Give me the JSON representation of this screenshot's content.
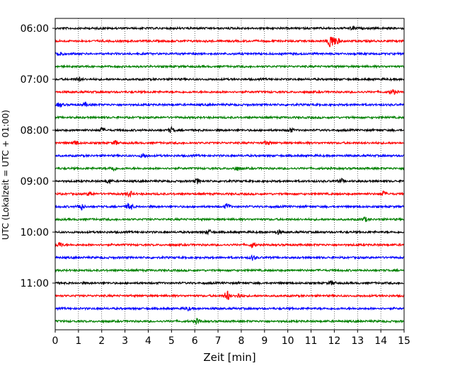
{
  "chart_data": {
    "type": "line",
    "title": "",
    "xlabel": "Zeit  [min]",
    "ylabel": "UTC (Lokalzeit = UTC + 01:00)",
    "xlim": [
      0,
      15
    ],
    "x_ticks": [
      "0",
      "1",
      "2",
      "3",
      "4",
      "5",
      "6",
      "7",
      "8",
      "9",
      "10",
      "11",
      "12",
      "13",
      "14",
      "15"
    ],
    "y_ticks": [
      "06:00",
      "07:00",
      "08:00",
      "09:00",
      "10:00",
      "11:00"
    ],
    "vertical_grid": true,
    "grid_style": "dotted",
    "trace_interval_minutes": 15,
    "trace_colors": [
      "#000000",
      "#ff0000",
      "#0000ff",
      "#008000"
    ],
    "series": [
      {
        "start": "06:00",
        "events": [
          {
            "x": 12.8,
            "amp": 0.25
          }
        ]
      },
      {
        "start": "06:15",
        "events": [
          {
            "x": 11.85,
            "amp": 1.2
          },
          {
            "x": 12.1,
            "amp": 0.5
          }
        ]
      },
      {
        "start": "06:30",
        "events": [
          {
            "x": 0.2,
            "amp": 0.4
          }
        ]
      },
      {
        "start": "06:45",
        "events": []
      },
      {
        "start": "07:00",
        "events": [
          {
            "x": 1.0,
            "amp": 0.25
          }
        ]
      },
      {
        "start": "07:15",
        "events": [
          {
            "x": 14.5,
            "amp": 0.35
          }
        ]
      },
      {
        "start": "07:30",
        "events": [
          {
            "x": 0.2,
            "amp": 0.3
          },
          {
            "x": 1.3,
            "amp": 0.25
          }
        ]
      },
      {
        "start": "07:45",
        "events": []
      },
      {
        "start": "08:00",
        "events": [
          {
            "x": 2.0,
            "amp": 0.3
          },
          {
            "x": 5.0,
            "amp": 0.4
          },
          {
            "x": 10.1,
            "amp": 0.3
          }
        ]
      },
      {
        "start": "08:15",
        "events": [
          {
            "x": 0.9,
            "amp": 0.3
          },
          {
            "x": 2.6,
            "amp": 0.3
          },
          {
            "x": 9.1,
            "amp": 0.3
          }
        ]
      },
      {
        "start": "08:30",
        "events": [
          {
            "x": 3.8,
            "amp": 0.35
          }
        ]
      },
      {
        "start": "08:45",
        "events": [
          {
            "x": 2.5,
            "amp": 0.35
          },
          {
            "x": 7.8,
            "amp": 0.3
          }
        ]
      },
      {
        "start": "09:00",
        "events": [
          {
            "x": 2.3,
            "amp": 0.35
          },
          {
            "x": 6.1,
            "amp": 0.35
          },
          {
            "x": 12.3,
            "amp": 0.3
          }
        ]
      },
      {
        "start": "09:15",
        "events": [
          {
            "x": 1.5,
            "amp": 0.3
          },
          {
            "x": 3.2,
            "amp": 0.4
          },
          {
            "x": 14.1,
            "amp": 0.35
          }
        ]
      },
      {
        "start": "09:30",
        "events": [
          {
            "x": 1.1,
            "amp": 0.5
          },
          {
            "x": 3.2,
            "amp": 0.6
          },
          {
            "x": 7.4,
            "amp": 0.4
          }
        ]
      },
      {
        "start": "09:45",
        "events": [
          {
            "x": 13.3,
            "amp": 0.3
          }
        ]
      },
      {
        "start": "10:00",
        "events": [
          {
            "x": 6.6,
            "amp": 0.3
          },
          {
            "x": 9.6,
            "amp": 0.3
          }
        ]
      },
      {
        "start": "10:15",
        "events": [
          {
            "x": 0.2,
            "amp": 0.35
          },
          {
            "x": 8.5,
            "amp": 0.35
          }
        ]
      },
      {
        "start": "10:30",
        "events": [
          {
            "x": 8.5,
            "amp": 0.35
          }
        ]
      },
      {
        "start": "10:45",
        "events": []
      },
      {
        "start": "11:00",
        "events": [
          {
            "x": 11.9,
            "amp": 0.3
          }
        ]
      },
      {
        "start": "11:15",
        "events": [
          {
            "x": 7.4,
            "amp": 0.75
          },
          {
            "x": 7.9,
            "amp": 0.4
          }
        ]
      },
      {
        "start": "11:30",
        "events": [
          {
            "x": 5.7,
            "amp": 0.25
          }
        ]
      },
      {
        "start": "11:45",
        "events": [
          {
            "x": 6.1,
            "amp": 0.35
          }
        ]
      }
    ]
  }
}
